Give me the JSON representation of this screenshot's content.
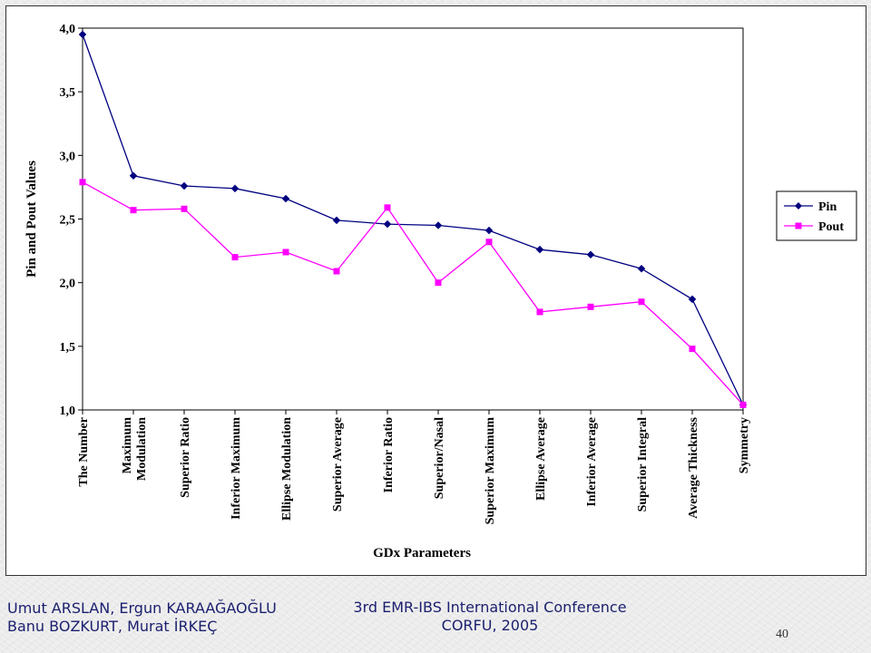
{
  "chart_data": {
    "type": "line",
    "xlabel": "GDx Parameters",
    "ylabel": "Pin and Pout Values",
    "ylim": [
      1.0,
      4.0
    ],
    "yticks": [
      "1,0",
      "1,5",
      "2,0",
      "2,5",
      "3,0",
      "3,5",
      "4,0"
    ],
    "ytick_values": [
      1.0,
      1.5,
      2.0,
      2.5,
      3.0,
      3.5,
      4.0
    ],
    "categories": [
      "The Number",
      "Maximum Modulation",
      "Superior Ratio",
      "Inferior Maximum",
      "Ellipse Modulation",
      "Superior Average",
      "Inferior Ratio",
      "Superior/Nasal",
      "Superior Maximum",
      "Ellipse Average",
      "Inferior Average",
      "Superior Integral",
      "Average Thickness",
      "Symmetry"
    ],
    "series": [
      {
        "name": "Pin",
        "color": "#000080",
        "marker": "diamond",
        "values": [
          3.95,
          2.84,
          2.76,
          2.74,
          2.66,
          2.49,
          2.46,
          2.45,
          2.41,
          2.26,
          2.22,
          2.11,
          1.87,
          1.04
        ]
      },
      {
        "name": "Pout",
        "color": "#ff00ff",
        "marker": "square",
        "values": [
          2.79,
          2.57,
          2.58,
          2.2,
          2.24,
          2.09,
          2.59,
          2.0,
          2.32,
          1.77,
          1.81,
          1.85,
          1.48,
          1.04
        ]
      }
    ],
    "legend": "right",
    "grid": false
  },
  "footer": {
    "authors_line1": "Umut ARSLAN, Ergun KARAAĞAOĞLU",
    "authors_line2": "Banu BOZKURT, Murat İRKEÇ",
    "conference_line1": "3rd EMR-IBS International Conference",
    "conference_line2": "CORFU, 2005",
    "page_number": "40"
  }
}
